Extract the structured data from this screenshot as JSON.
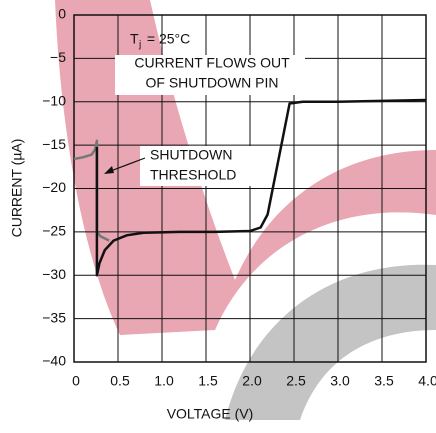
{
  "chart_data": {
    "type": "line",
    "xlabel": "VOLTAGE (V)",
    "ylabel": "CURRENT (µA)",
    "xlim": [
      0,
      4.0
    ],
    "ylim": [
      -40,
      0
    ],
    "xticks": [
      0,
      0.5,
      {
        "value": 1.0,
        "label": "1.0"
      },
      1.5,
      {
        "value": 2.0,
        "label": "2.0"
      },
      2.5,
      {
        "value": 3.0,
        "label": "3.0"
      },
      3.5,
      {
        "value": 4.0,
        "label": "4.0"
      }
    ],
    "yticks": [
      0,
      {
        "value": -5,
        "label": "−5"
      },
      {
        "value": -10,
        "label": "−10"
      },
      {
        "value": -15,
        "label": "−15"
      },
      {
        "value": -20,
        "label": "−20"
      },
      {
        "value": -25,
        "label": "−25"
      },
      {
        "value": -30,
        "label": "−30"
      },
      {
        "value": -35,
        "label": "−35"
      },
      {
        "value": -40,
        "label": "−40"
      }
    ],
    "grid": true,
    "series": [
      {
        "color": "#777777",
        "x": [
          0,
          0.1,
          0.2,
          0.24,
          0.26,
          0.26,
          0.3,
          0.4
        ],
        "values": [
          -16.6,
          -16.4,
          -16.1,
          -15.5,
          -14.5,
          -25,
          -25.5,
          -26
        ]
      },
      {
        "color": "#111111",
        "x": [
          0.26,
          0.26,
          0.29,
          0.35,
          0.45,
          0.6,
          0.8,
          1.2,
          1.6,
          2.0,
          2.12,
          2.2,
          2.45,
          2.6,
          3.0,
          3.5,
          4.0
        ],
        "values": [
          -15.2,
          -30,
          -28.6,
          -27.1,
          -26,
          -25.4,
          -25.1,
          -25,
          -25,
          -24.9,
          -24.5,
          -23,
          -10.2,
          -10,
          -10,
          -9.9,
          -9.8
        ]
      }
    ],
    "annotations": {
      "temperature": {
        "symbol": "T",
        "subscript": "j",
        "text": " = 25°C"
      },
      "note_line1": "CURRENT FLOWS OUT",
      "note_line2": "OF SHUTDOWN PIN",
      "threshold_line1": "SHUTDOWN",
      "threshold_line2": "THRESHOLD"
    }
  }
}
